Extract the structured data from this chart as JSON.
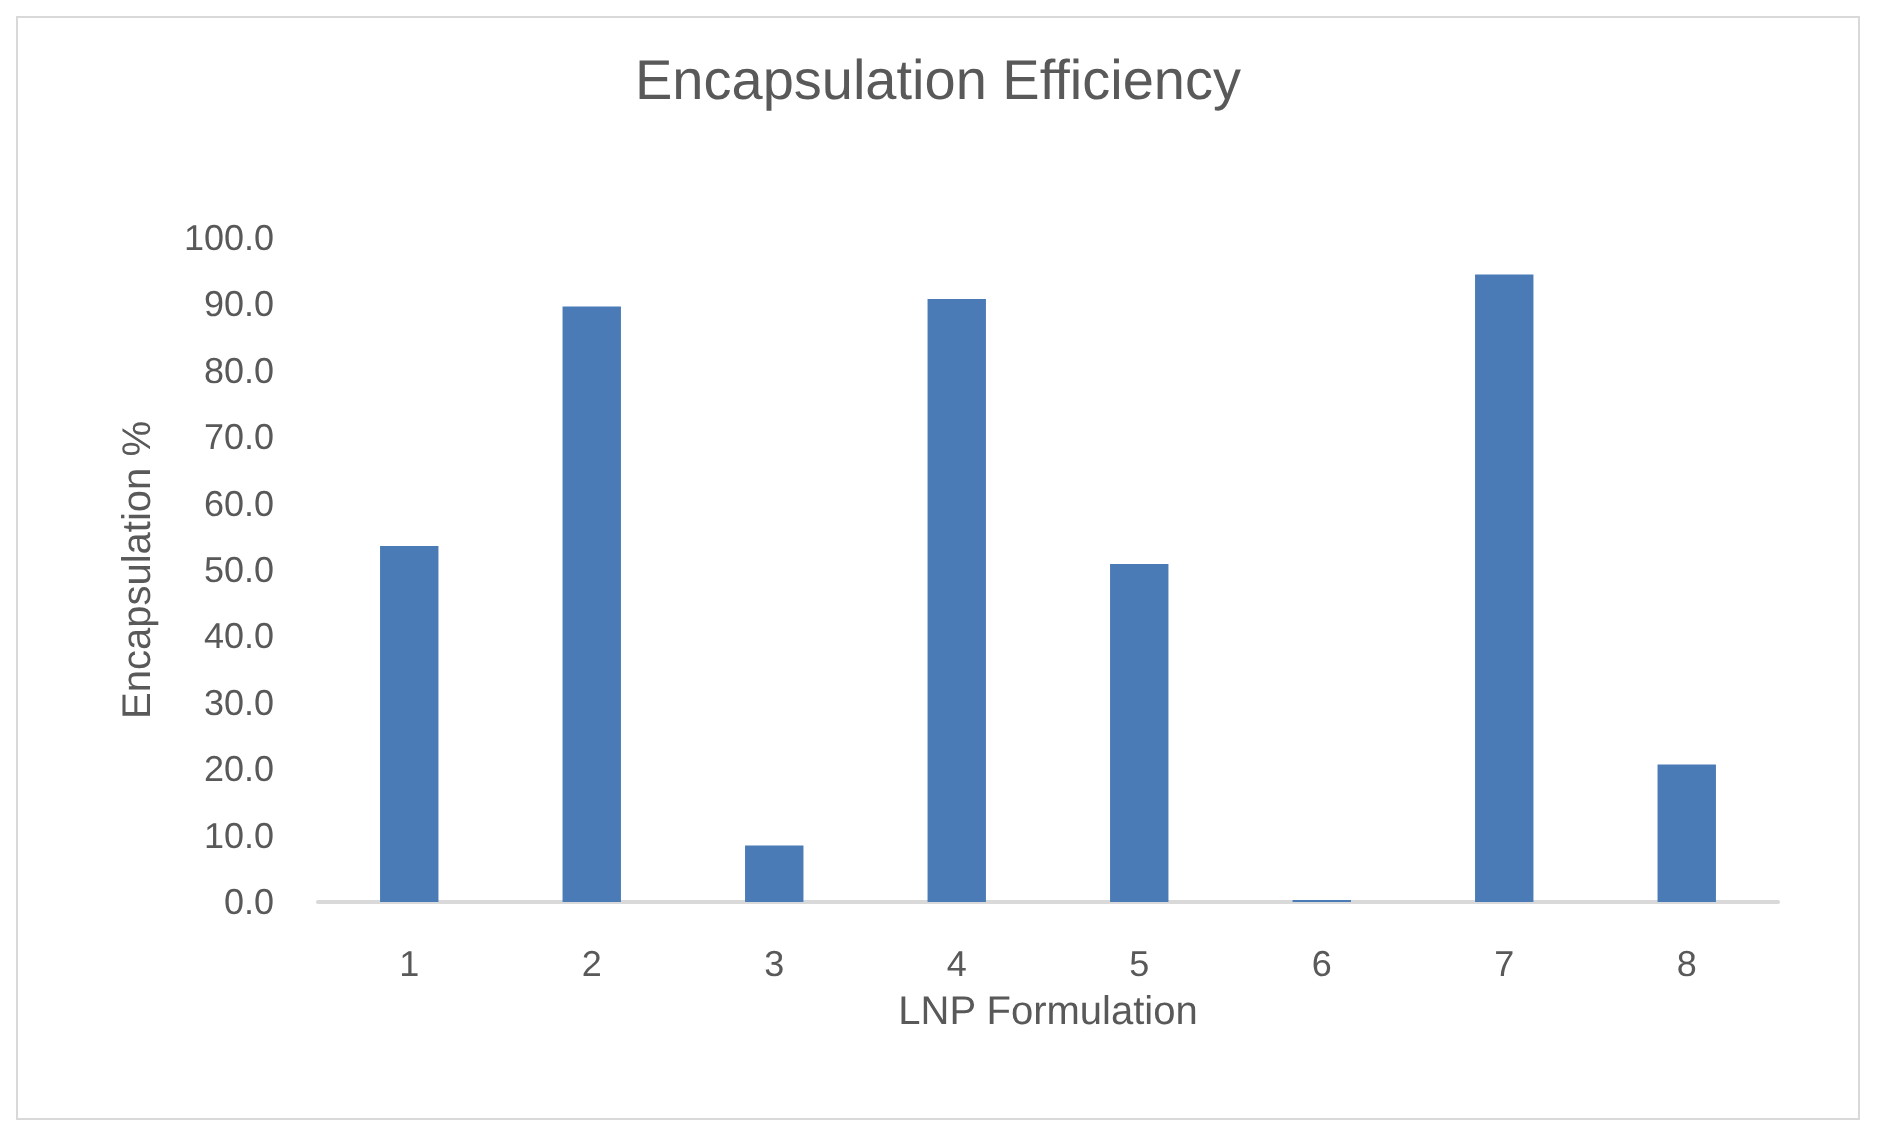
{
  "chart_data": {
    "type": "bar",
    "title": "Encapsulation Efficiency",
    "xlabel": "LNP Formulation",
    "ylabel": "Encapsulation %",
    "categories": [
      "1",
      "2",
      "3",
      "4",
      "5",
      "6",
      "7",
      "8"
    ],
    "values": [
      53.6,
      89.7,
      8.5,
      90.8,
      50.9,
      0.3,
      94.5,
      20.7
    ],
    "color": "#4a7bb7",
    "ylim": [
      0,
      100
    ],
    "yticks": [
      {
        "value": 0,
        "label": "0.0"
      },
      {
        "value": 10,
        "label": "10.0"
      },
      {
        "value": 20,
        "label": "20.0"
      },
      {
        "value": 30,
        "label": "30.0"
      },
      {
        "value": 40,
        "label": "40.0"
      },
      {
        "value": 50,
        "label": "50.0"
      },
      {
        "value": 60,
        "label": "60.0"
      },
      {
        "value": 70,
        "label": "70.0"
      },
      {
        "value": 80,
        "label": "80.0"
      },
      {
        "value": 90,
        "label": "90.0"
      },
      {
        "value": 100,
        "label": "100.0"
      }
    ],
    "grid": false
  }
}
